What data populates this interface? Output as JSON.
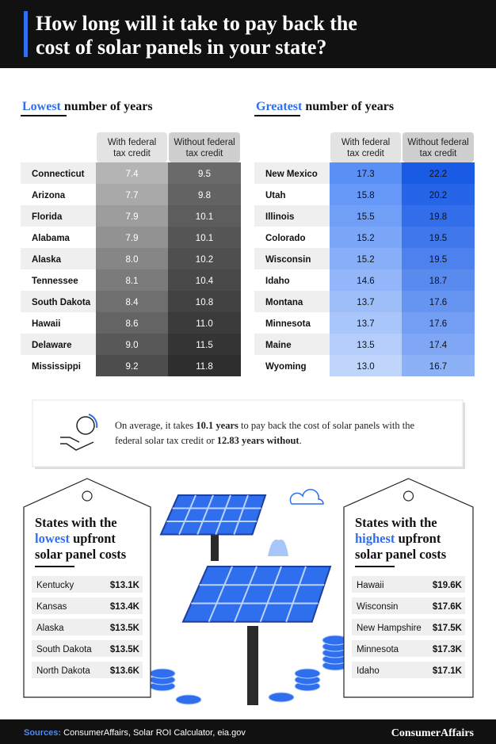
{
  "header": {
    "title_lines": [
      "How long will it take to pay back the",
      "cost of solar panels in your state?"
    ]
  },
  "tables": [
    {
      "title_highlight": "Lowest",
      "title_rest": "number of years",
      "columns": [
        [
          "With federal",
          "tax credit"
        ],
        [
          "Without federal",
          "tax credit"
        ]
      ],
      "rows": [
        [
          "Connecticut",
          "7.4",
          "9.5"
        ],
        [
          "Arizona",
          "7.7",
          "9.8"
        ],
        [
          "Florida",
          "7.9",
          "10.1"
        ],
        [
          "Alabama",
          "7.9",
          "10.1"
        ],
        [
          "Alaska",
          "8.0",
          "10.2"
        ],
        [
          "Tennessee",
          "8.1",
          "10.4"
        ],
        [
          "South Dakota",
          "8.4",
          "10.8"
        ],
        [
          "Hawaii",
          "8.6",
          "11.0"
        ],
        [
          "Delaware",
          "9.0",
          "11.5"
        ],
        [
          "Mississippi",
          "9.2",
          "11.8"
        ]
      ]
    },
    {
      "title_highlight": "Greatest",
      "title_rest": "number of years",
      "columns": [
        [
          "With federal",
          "tax credit"
        ],
        [
          "Without federal",
          "tax credit"
        ]
      ],
      "rows": [
        [
          "New Mexico",
          "17.3",
          "22.2"
        ],
        [
          "Utah",
          "15.8",
          "20.2"
        ],
        [
          "Illinois",
          "15.5",
          "19.8"
        ],
        [
          "Colorado",
          "15.2",
          "19.5"
        ],
        [
          "Wisconsin",
          "15.2",
          "19.5"
        ],
        [
          "Idaho",
          "14.6",
          "18.7"
        ],
        [
          "Montana",
          "13.7",
          "17.6"
        ],
        [
          "Minnesota",
          "13.7",
          "17.6"
        ],
        [
          "Maine",
          "13.5",
          "17.4"
        ],
        [
          "Wyoming",
          "13.0",
          "16.7"
        ]
      ]
    }
  ],
  "note": {
    "lines": [
      [
        "On average, it takes ",
        "10.1 years",
        " to pay back the cost of solar panels with the"
      ],
      [
        "federal solar tax credit or ",
        "12.83 years without",
        "."
      ]
    ]
  },
  "cost_cards": [
    {
      "title": [
        "States with the",
        "lowest",
        "upfront",
        "solar panel costs"
      ],
      "rows": [
        [
          "Kentucky",
          "$13.1K"
        ],
        [
          "Kansas",
          "$13.4K"
        ],
        [
          "Alaska",
          "$13.5K"
        ],
        [
          "South Dakota",
          "$13.5K"
        ],
        [
          "North Dakota",
          "$13.6K"
        ]
      ]
    },
    {
      "title": [
        "States with the",
        "highest",
        "upfront",
        "solar panel costs"
      ],
      "rows": [
        [
          "Hawaii",
          "$19.6K"
        ],
        [
          "Wisconsin",
          "$17.6K"
        ],
        [
          "New Hampshire",
          "$17.5K"
        ],
        [
          "Minnesota",
          "$17.3K"
        ],
        [
          "Idaho",
          "$17.1K"
        ]
      ]
    }
  ],
  "footer": {
    "sources_label": "Sources:",
    "sources": "ConsumerAffairs, Solar ROI Calculator, eia.gov",
    "brand": "ConsumerAffairs"
  }
}
